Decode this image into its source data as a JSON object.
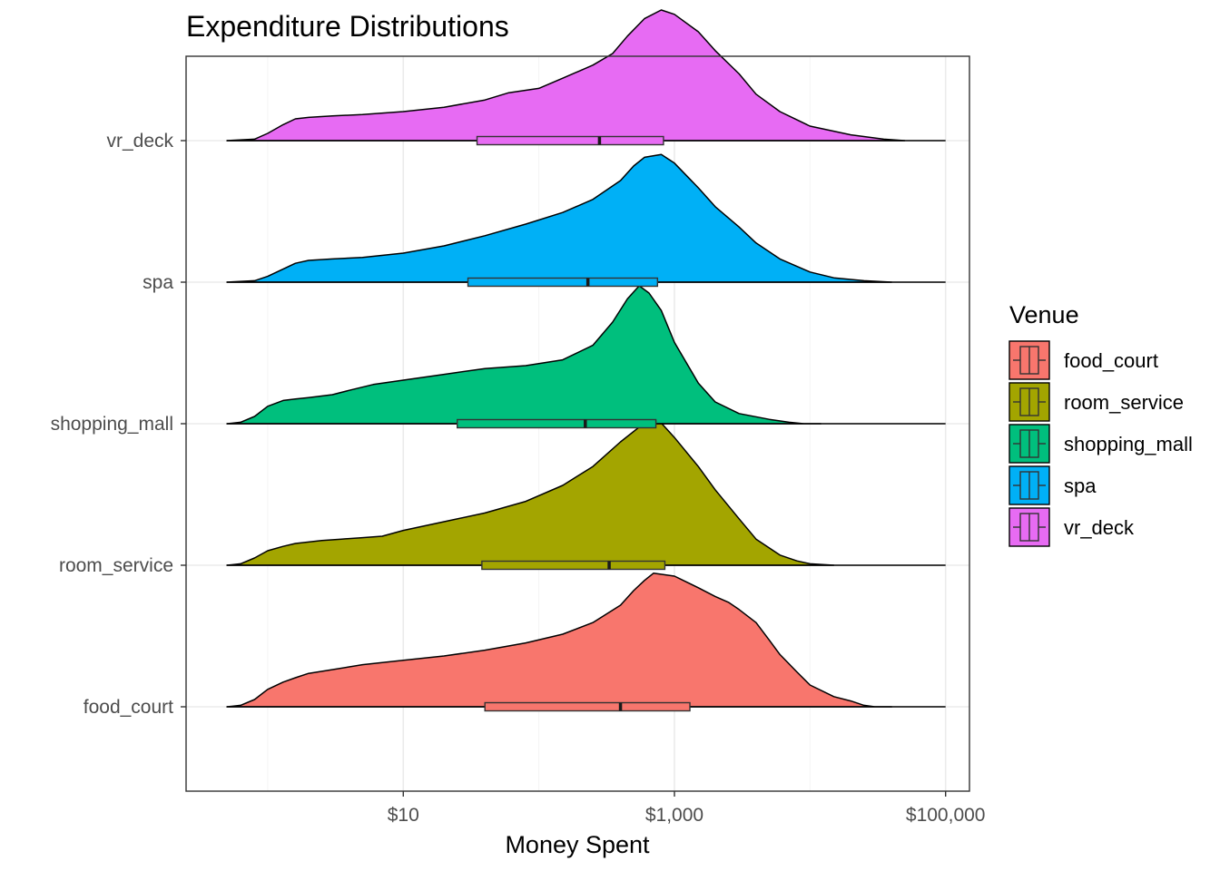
{
  "chart_data": {
    "type": "density_ridgeline_with_boxplot",
    "title": "Expenditure Distributions",
    "xlabel": "Money Spent",
    "ylabel": "",
    "x_scale": "log10",
    "xlim": [
      0.25,
      150000
    ],
    "x_ticks": [
      {
        "value": 10,
        "label": "$10"
      },
      {
        "value": 1000,
        "label": "$1,000"
      },
      {
        "value": 100000,
        "label": "$100,000"
      }
    ],
    "grid": true,
    "legend": {
      "title": "Venue",
      "placement": "right"
    },
    "categories": [
      "food_court",
      "room_service",
      "shopping_mall",
      "spa",
      "vr_deck"
    ],
    "series": [
      {
        "name": "food_court",
        "color": "#F8766D",
        "box": {
          "q1": 40,
          "median": 400,
          "q3": 1300
        },
        "density_x": [
          0.5,
          0.63,
          0.8,
          1,
          1.3,
          1.6,
          2,
          3.2,
          5,
          10,
          20,
          40,
          80,
          150,
          250,
          400,
          500,
          600,
          700,
          1000,
          1500,
          2000,
          2500,
          3000,
          4000,
          5000,
          6000,
          8000,
          10000,
          15000,
          20000,
          25000,
          30000,
          40000
        ],
        "density_y": [
          0,
          0.01,
          0.05,
          0.12,
          0.17,
          0.2,
          0.23,
          0.26,
          0.29,
          0.32,
          0.35,
          0.39,
          0.44,
          0.5,
          0.58,
          0.7,
          0.8,
          0.87,
          0.92,
          0.9,
          0.82,
          0.76,
          0.72,
          0.67,
          0.58,
          0.46,
          0.36,
          0.24,
          0.15,
          0.07,
          0.04,
          0.01,
          0,
          0
        ]
      },
      {
        "name": "room_service",
        "color": "#A3A500",
        "box": {
          "q1": 38,
          "median": 330,
          "q3": 850
        },
        "density_x": [
          0.5,
          0.63,
          0.8,
          1,
          1.3,
          1.6,
          2,
          2.5,
          3.5,
          5,
          7,
          10,
          20,
          40,
          80,
          150,
          250,
          400,
          600,
          700,
          800,
          1000,
          1500,
          2000,
          3000,
          4000,
          6000,
          8000,
          10000,
          15000
        ],
        "density_y": [
          0,
          0.01,
          0.05,
          0.1,
          0.13,
          0.15,
          0.16,
          0.17,
          0.18,
          0.19,
          0.2,
          0.24,
          0.3,
          0.36,
          0.44,
          0.55,
          0.68,
          0.85,
          0.98,
          1.0,
          0.98,
          0.88,
          0.68,
          0.52,
          0.32,
          0.18,
          0.07,
          0.03,
          0.01,
          0
        ]
      },
      {
        "name": "shopping_mall",
        "color": "#00BF7D",
        "box": {
          "q1": 25,
          "median": 220,
          "q3": 730
        },
        "density_x": [
          0.5,
          0.63,
          0.8,
          1,
          1.3,
          1.6,
          2,
          3,
          4,
          6,
          10,
          20,
          40,
          80,
          150,
          250,
          350,
          450,
          550,
          650,
          800,
          1000,
          1500,
          2000,
          3000,
          5000,
          7000,
          9000,
          12000
        ],
        "density_y": [
          0,
          0.01,
          0.05,
          0.12,
          0.16,
          0.17,
          0.18,
          0.2,
          0.23,
          0.27,
          0.3,
          0.34,
          0.38,
          0.4,
          0.44,
          0.54,
          0.7,
          0.86,
          0.95,
          0.9,
          0.78,
          0.56,
          0.28,
          0.15,
          0.07,
          0.03,
          0.01,
          0,
          0
        ]
      },
      {
        "name": "spa",
        "color": "#00B0F6",
        "box": {
          "q1": 30,
          "median": 230,
          "q3": 750
        },
        "density_x": [
          0.5,
          0.8,
          1,
          1.3,
          1.6,
          2,
          3,
          5,
          10,
          20,
          40,
          80,
          150,
          250,
          400,
          500,
          600,
          800,
          1000,
          1500,
          2000,
          3000,
          4000,
          6000,
          10000,
          15000,
          25000,
          40000
        ],
        "density_y": [
          0,
          0.01,
          0.04,
          0.09,
          0.13,
          0.15,
          0.16,
          0.17,
          0.2,
          0.25,
          0.32,
          0.4,
          0.48,
          0.57,
          0.7,
          0.8,
          0.86,
          0.88,
          0.82,
          0.65,
          0.52,
          0.38,
          0.27,
          0.16,
          0.07,
          0.03,
          0.01,
          0
        ]
      },
      {
        "name": "vr_deck",
        "color": "#E76BF3",
        "box": {
          "q1": 35,
          "median": 280,
          "q3": 830
        },
        "density_x": [
          0.5,
          0.8,
          1,
          1.3,
          1.6,
          2,
          3,
          5,
          10,
          20,
          40,
          60,
          100,
          150,
          250,
          350,
          450,
          600,
          800,
          1000,
          1500,
          2000,
          3000,
          4000,
          6000,
          10000,
          20000,
          35000,
          50000
        ],
        "density_y": [
          0,
          0.01,
          0.05,
          0.11,
          0.15,
          0.16,
          0.17,
          0.18,
          0.2,
          0.23,
          0.28,
          0.33,
          0.36,
          0.43,
          0.52,
          0.6,
          0.72,
          0.84,
          0.9,
          0.87,
          0.75,
          0.62,
          0.46,
          0.32,
          0.2,
          0.1,
          0.04,
          0.01,
          0
        ]
      }
    ]
  }
}
